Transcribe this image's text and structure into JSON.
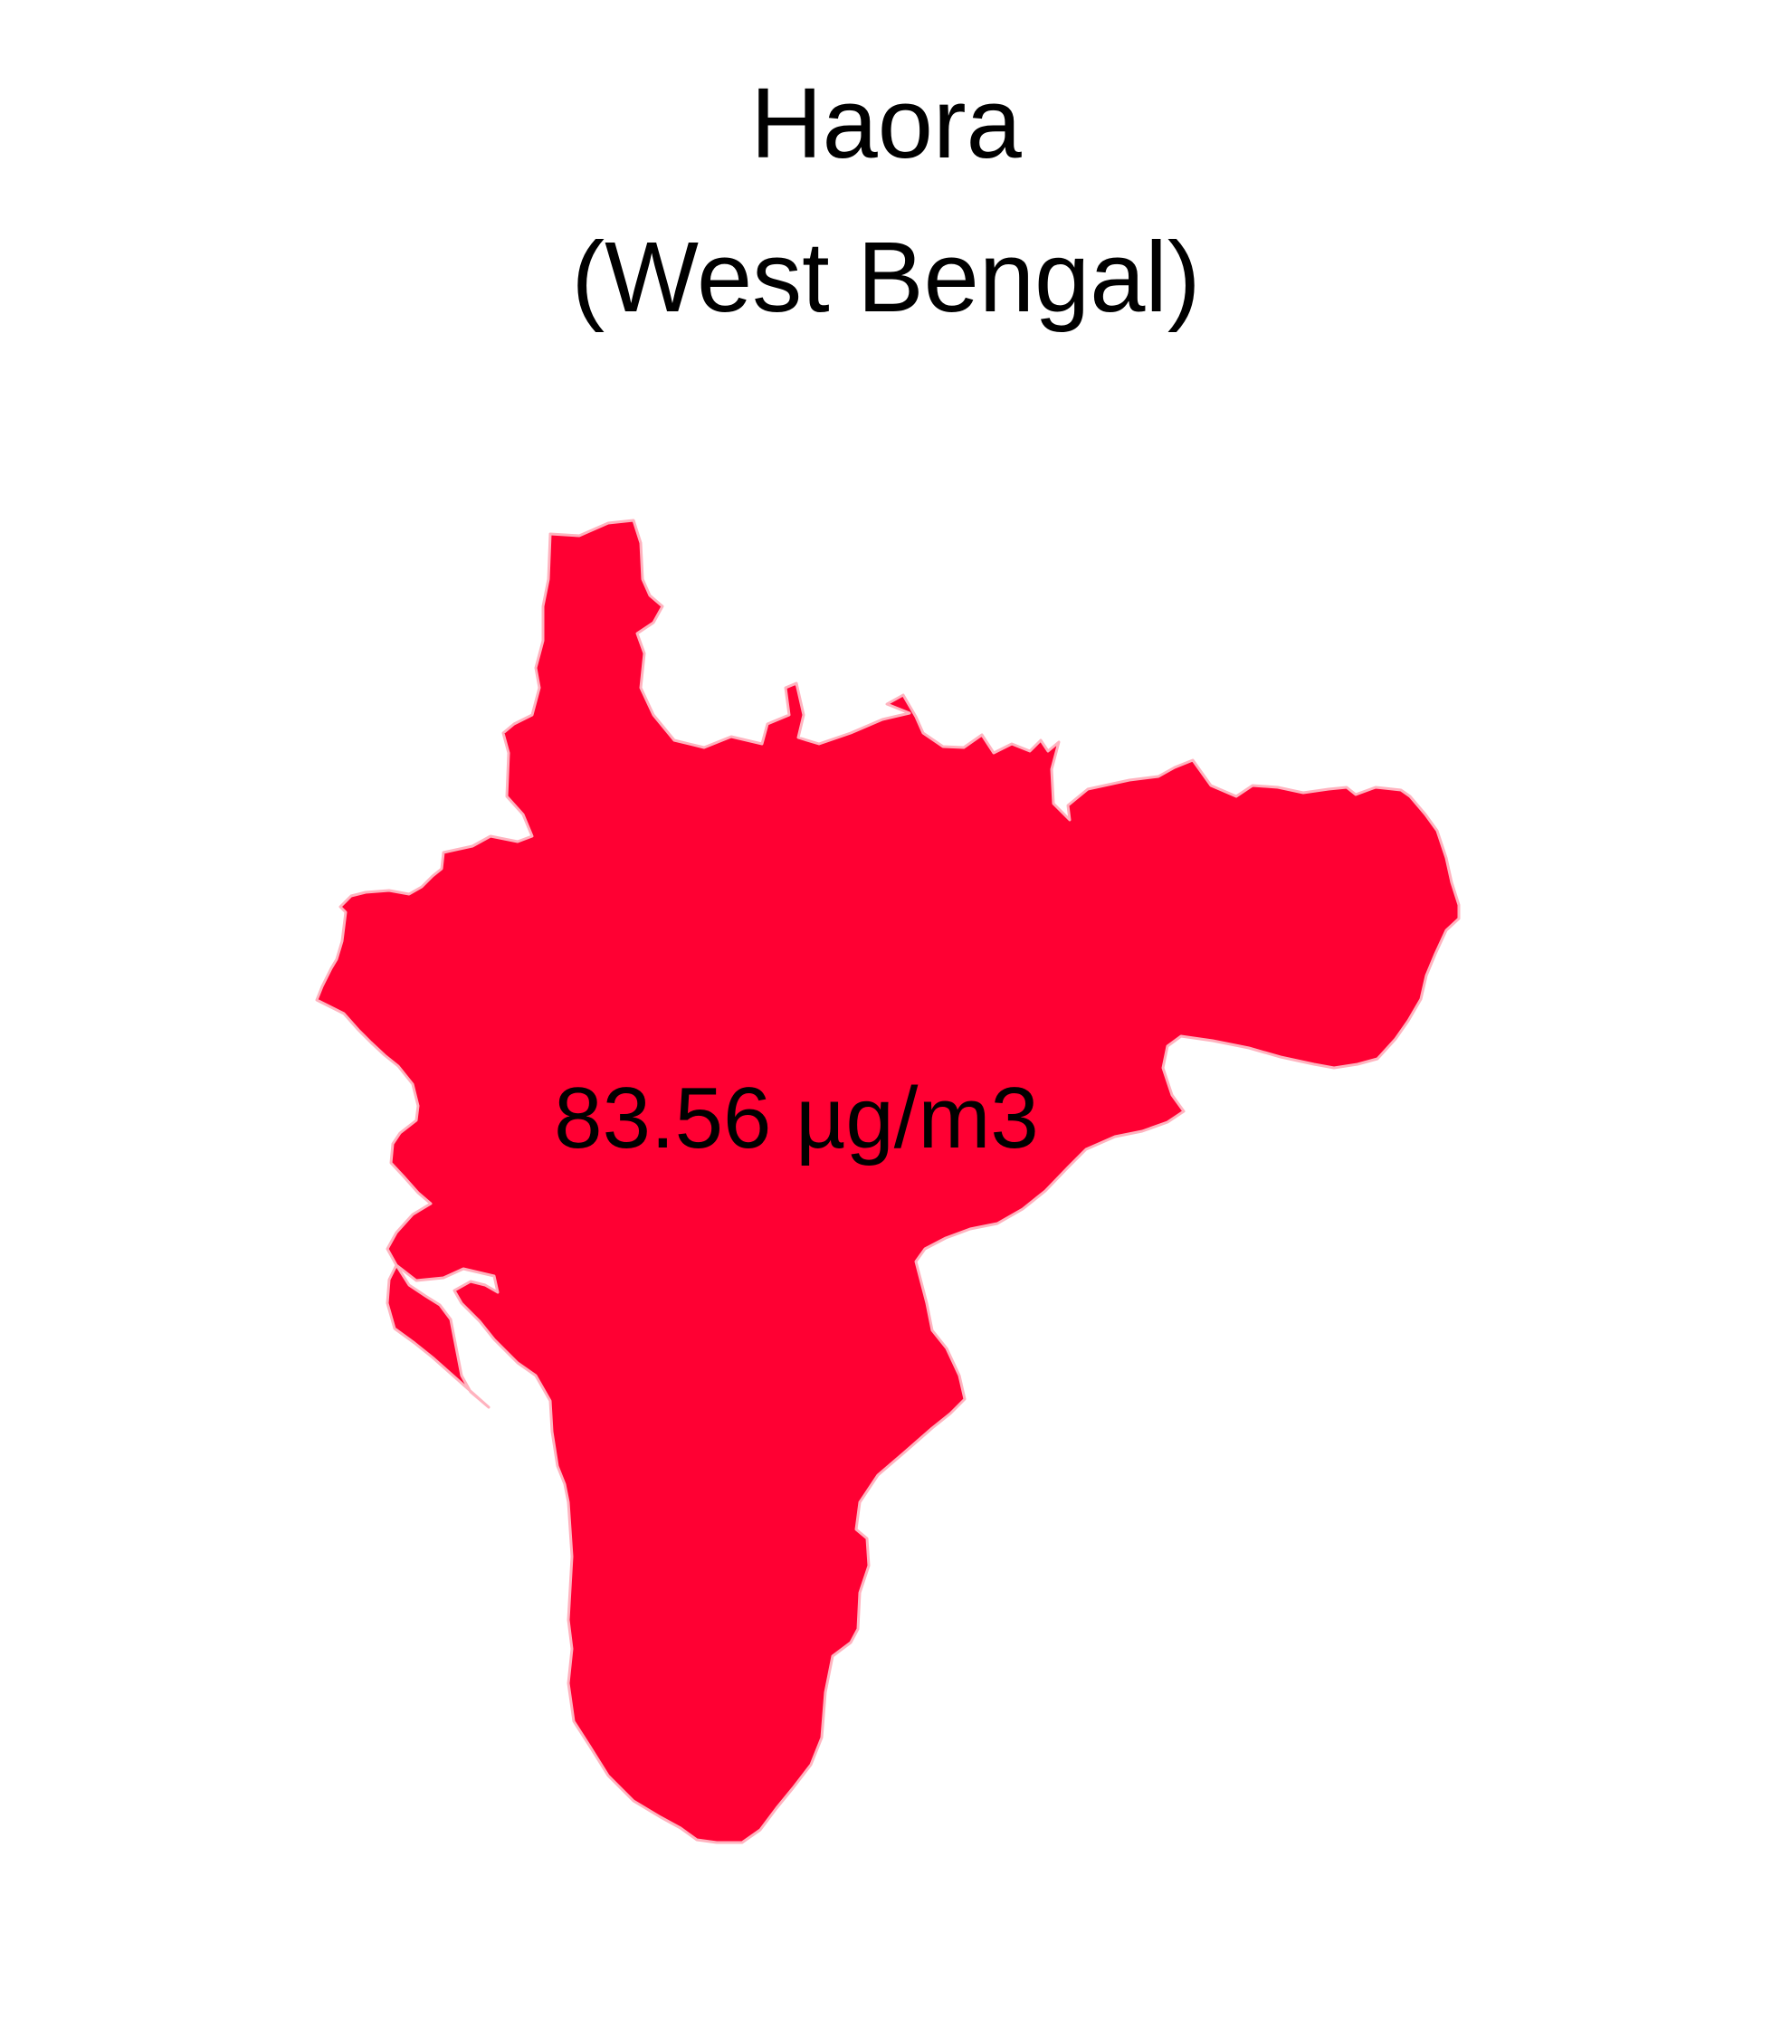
{
  "map": {
    "title": "Haora",
    "subtitle": "(West Bengal)",
    "value_label": "83.56 µg/m3",
    "fill_color": "#FF0033",
    "border_color": "#FFB3BF",
    "background_color": "#FFFFFF"
  }
}
